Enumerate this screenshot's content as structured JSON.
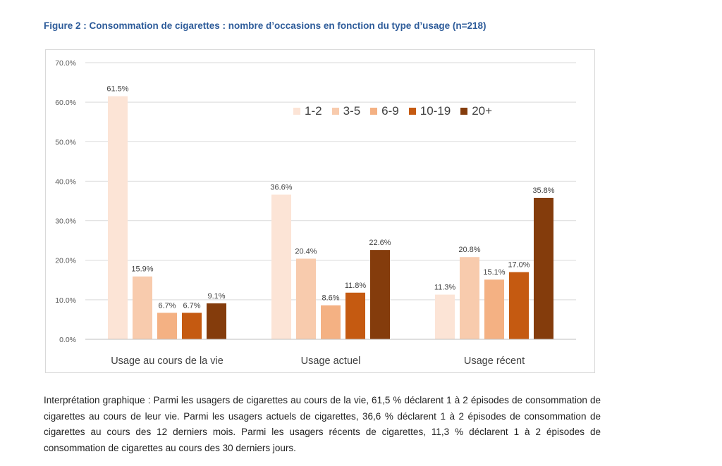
{
  "figure_title": "Figure 2 : Consommation de cigarettes : nombre d’occasions en fonction du type d’usage (n=218)",
  "caption": "Interprétation graphique : Parmi les usagers de cigarettes au cours de la vie, 61,5 % déclarent 1 à 2 épisodes de consommation de cigarettes au cours de leur vie. Parmi les usagers actuels de cigarettes, 36,6 % déclarent 1 à 2 épisodes de consommation de cigarettes au cours des 12 derniers mois. Parmi les usagers récents de cigarettes, 11,3 % déclarent 1 à 2 épisodes de consommation de cigarettes au cours des 30 derniers jours.",
  "chart_data": {
    "type": "bar",
    "categories": [
      "Usage au cours de la vie",
      "Usage actuel",
      "Usage récent"
    ],
    "series": [
      {
        "name": "1-2",
        "color": "#fce4d6",
        "values": [
          61.5,
          36.6,
          11.3
        ],
        "labels": [
          "61.5%",
          "36.6%",
          "11.3%"
        ]
      },
      {
        "name": "3-5",
        "color": "#f8cbad",
        "values": [
          15.9,
          20.4,
          20.8
        ],
        "labels": [
          "15.9%",
          "20.4%",
          "20.8%"
        ]
      },
      {
        "name": "6-9",
        "color": "#f4b183",
        "values": [
          6.7,
          8.6,
          15.1
        ],
        "labels": [
          "6.7%",
          "8.6%",
          "15.1%"
        ]
      },
      {
        "name": "10-19",
        "color": "#c55a11",
        "values": [
          6.7,
          11.8,
          17.0
        ],
        "labels": [
          "6.7%",
          "11.8%",
          "17.0%"
        ]
      },
      {
        "name": "20+",
        "color": "#843c0c",
        "values": [
          9.1,
          22.6,
          35.8
        ],
        "labels": [
          "9.1%",
          "22.6%",
          "35.8%"
        ]
      }
    ],
    "ylim": [
      0,
      70
    ],
    "yticks": [
      "0.0%",
      "10.0%",
      "20.0%",
      "30.0%",
      "40.0%",
      "50.0%",
      "60.0%",
      "70.0%"
    ],
    "grid": true,
    "legend_position": "top-right"
  }
}
